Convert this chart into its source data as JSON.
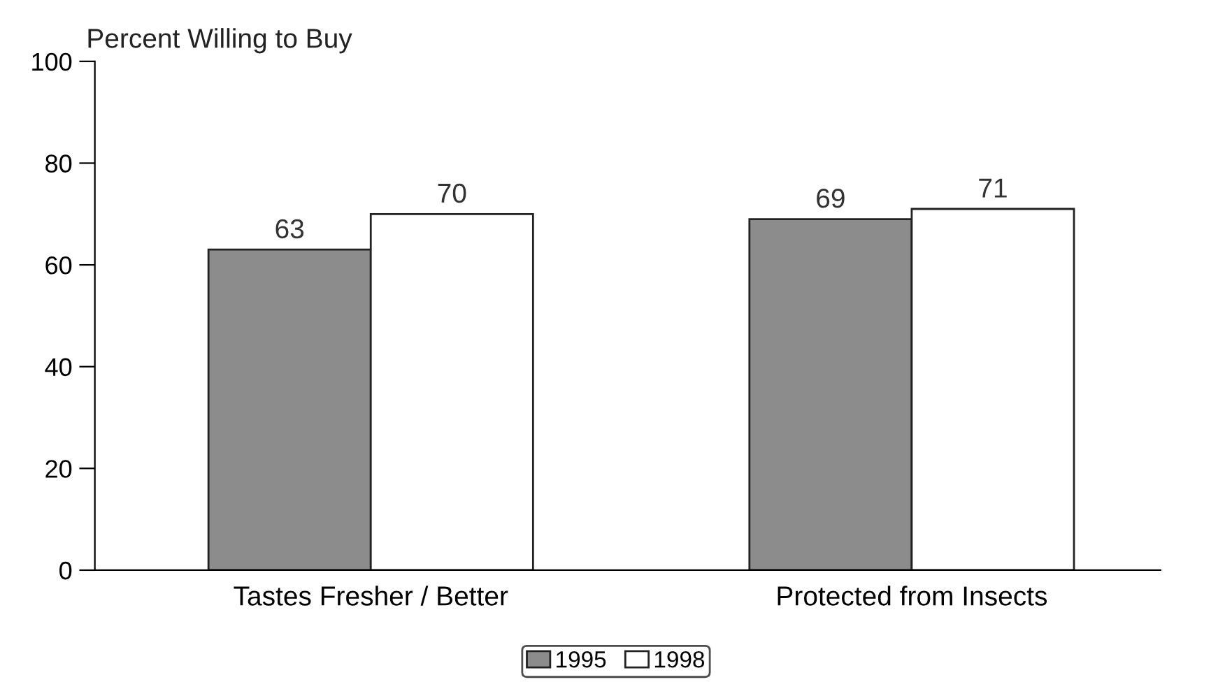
{
  "chart_data": {
    "type": "bar",
    "ylabel": "Percent Willing to Buy",
    "categories": [
      "Tastes Fresher / Better",
      "Protected from Insects"
    ],
    "series": [
      {
        "name": "1995",
        "color": "#8c8c8c",
        "values": [
          63,
          69
        ]
      },
      {
        "name": "1998",
        "color": "#ffffff",
        "values": [
          70,
          71
        ]
      }
    ],
    "ylim": [
      0,
      100
    ],
    "yticks": [
      0,
      20,
      40,
      60,
      80,
      100
    ],
    "data_labels": true,
    "legend": "bottom",
    "grid": false
  }
}
